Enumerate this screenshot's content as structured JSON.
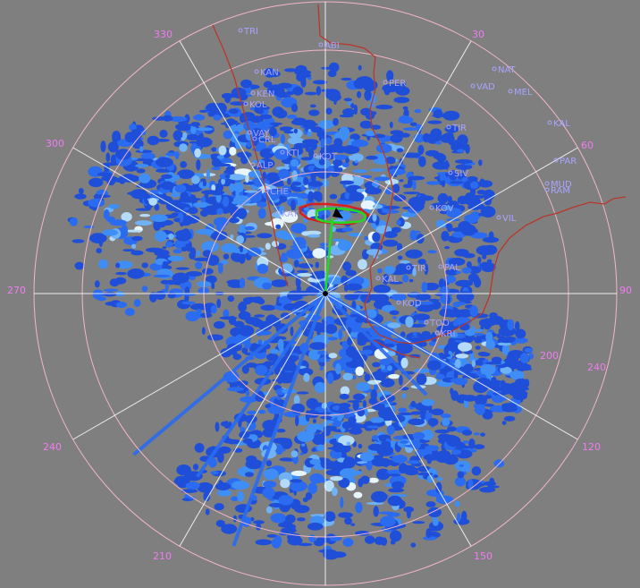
{
  "display": {
    "background_color": "#7f7f7f",
    "ring_color": "#f3b6c8",
    "spoke_color": "#ffffff",
    "azimuth_label_color": "#f07cf0",
    "station_label_color": "#a9a4ff",
    "coastline_color": "#b8372b",
    "track_color": "#22d822",
    "cell_outline_color": "#d81f1f"
  },
  "azimuth_labels": [
    {
      "text": "330"
    },
    {
      "text": "30"
    },
    {
      "text": "300"
    },
    {
      "text": "60"
    },
    {
      "text": "270"
    },
    {
      "text": "90"
    },
    {
      "text": "240"
    },
    {
      "text": "120"
    },
    {
      "text": "210"
    },
    {
      "text": "150"
    },
    {
      "text": "200"
    },
    {
      "text": "240"
    }
  ],
  "stations": [
    {
      "text": "TRI"
    },
    {
      "text": "ABI"
    },
    {
      "text": "KAN"
    },
    {
      "text": "PER"
    },
    {
      "text": "NAT"
    },
    {
      "text": "VAD"
    },
    {
      "text": "MEL"
    },
    {
      "text": "KEN"
    },
    {
      "text": "KOL"
    },
    {
      "text": "TIR"
    },
    {
      "text": "KAL"
    },
    {
      "text": "VAY"
    },
    {
      "text": "CRL"
    },
    {
      "text": "KTI"
    },
    {
      "text": "KOT"
    },
    {
      "text": "PAR"
    },
    {
      "text": "ALP"
    },
    {
      "text": "SIV"
    },
    {
      "text": "MUD"
    },
    {
      "text": "RAM"
    },
    {
      "text": "CHE"
    },
    {
      "text": "KAY"
    },
    {
      "text": "KOV"
    },
    {
      "text": "VIL"
    },
    {
      "text": "TIR"
    },
    {
      "text": "PAL"
    },
    {
      "text": "KAL"
    },
    {
      "text": "KOD"
    },
    {
      "text": "TOO"
    },
    {
      "text": "KRI"
    }
  ]
}
